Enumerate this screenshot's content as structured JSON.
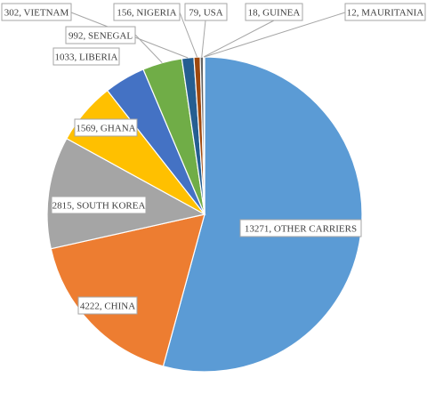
{
  "chart_data": {
    "type": "pie",
    "title": "",
    "slices": [
      {
        "category": "OTHER CARRIERS",
        "value": 13271,
        "color": "#5b9bd5"
      },
      {
        "category": "CHINA",
        "value": 4222,
        "color": "#ed7d31"
      },
      {
        "category": "SOUTH KOREA",
        "value": 2815,
        "color": "#a5a5a5"
      },
      {
        "category": "GHANA",
        "value": 1569,
        "color": "#ffc000"
      },
      {
        "category": "LIBERIA",
        "value": 1033,
        "color": "#4472c4"
      },
      {
        "category": "SENEGAL",
        "value": 992,
        "color": "#70ad47"
      },
      {
        "category": "VIETNAM",
        "value": 302,
        "color": "#255e91"
      },
      {
        "category": "NIGERIA",
        "value": 156,
        "color": "#9e480e"
      },
      {
        "category": "USA",
        "value": 79,
        "color": "#636363"
      },
      {
        "category": "GUINEA",
        "value": 18,
        "color": "#997300"
      },
      {
        "category": "MAURITANIA",
        "value": 12,
        "color": "#264478"
      }
    ],
    "data_labels": [
      "13271, OTHER CARRIERS",
      "4222, CHINA",
      "2815, SOUTH KOREA",
      "1569, GHANA",
      "1033, LIBERIA",
      "992, SENEGAL",
      "302, VIETNAM",
      "156, NIGERIA",
      "79, USA",
      "18, GUINEA",
      "12, MAURITANIA"
    ],
    "legend": "none"
  }
}
